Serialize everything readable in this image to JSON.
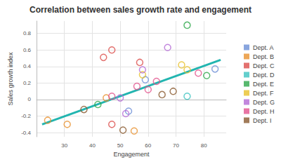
{
  "chart_data": {
    "type": "scatter",
    "title": "Correlation between sales growth rate and engagement",
    "x_label": "Engagement",
    "y_label": "Sales growth index",
    "xlim": [
      20,
      88
    ],
    "ylim": [
      -0.45,
      0.95
    ],
    "xticks": [
      30,
      40,
      50,
      60,
      70,
      80
    ],
    "yticks": [
      -0.4,
      -0.2,
      0,
      0.2,
      0.4,
      0.6,
      0.8
    ],
    "grid": true,
    "legend": "right",
    "marker": "circle-open",
    "series": [
      {
        "name": "Dept. A",
        "color": "#6b8fd6",
        "values": [
          [
            59,
            0.24
          ],
          [
            53,
            -0.14
          ],
          [
            84,
            0.37
          ]
        ]
      },
      {
        "name": "Dept. B",
        "color": "#e8912e",
        "values": [
          [
            24,
            -0.25
          ],
          [
            31,
            -0.3
          ],
          [
            45,
            0.02
          ],
          [
            55,
            -0.38
          ]
        ]
      },
      {
        "name": "Dept. C",
        "color": "#dc4e4b",
        "values": [
          [
            44,
            0.51
          ],
          [
            47,
            0.6
          ],
          [
            47,
            -0.3
          ],
          [
            57,
            0.45
          ]
        ]
      },
      {
        "name": "Dept. D",
        "color": "#3cc3c0",
        "values": [
          [
            74,
            0.04
          ]
        ]
      },
      {
        "name": "Dept. E",
        "color": "#2ea84a",
        "values": [
          [
            42,
            -0.06
          ],
          [
            74,
            0.9
          ],
          [
            81,
            0.29
          ]
        ]
      },
      {
        "name": "Dept. F",
        "color": "#e8c12a",
        "values": [
          [
            58,
            0.3
          ],
          [
            72,
            0.42
          ],
          [
            74,
            0.36
          ]
        ]
      },
      {
        "name": "Dept. G",
        "color": "#b46ad6",
        "values": [
          [
            58,
            0.36
          ],
          [
            52,
            -0.17
          ],
          [
            50,
            0.02
          ],
          [
            67,
            0.63
          ]
        ]
      },
      {
        "name": "Dept. H",
        "color": "#e2528d",
        "values": [
          [
            56,
            0.16
          ],
          [
            60,
            0.12
          ],
          [
            78,
            0.32
          ],
          [
            63,
            0.22
          ],
          [
            47,
            0.04
          ]
        ]
      },
      {
        "name": "Dept. I",
        "color": "#8a5a30",
        "values": [
          [
            51,
            -0.37
          ],
          [
            65,
            0.06
          ],
          [
            69,
            0.1
          ],
          [
            37,
            -0.12
          ]
        ]
      }
    ],
    "trend_line": {
      "x": [
        22,
        86
      ],
      "y": [
        -0.3,
        0.48
      ],
      "color": "#22b5b0"
    }
  }
}
